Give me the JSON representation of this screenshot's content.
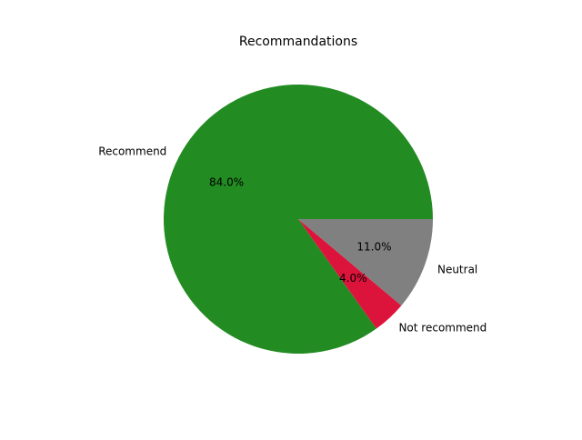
{
  "chart_data": {
    "type": "pie",
    "title": "Recommandations",
    "slices": [
      {
        "label": "Recommend",
        "value": 84.0,
        "pct_label": "84.0%",
        "color": "#228b22"
      },
      {
        "label": "Not recommend",
        "value": 4.0,
        "pct_label": "4.0%",
        "color": "#dc143c"
      },
      {
        "label": "Neutral",
        "value": 11.0,
        "pct_label": "11.0%",
        "color": "#808080"
      }
    ],
    "start_angle": 0,
    "direction": "counterclockwise"
  }
}
